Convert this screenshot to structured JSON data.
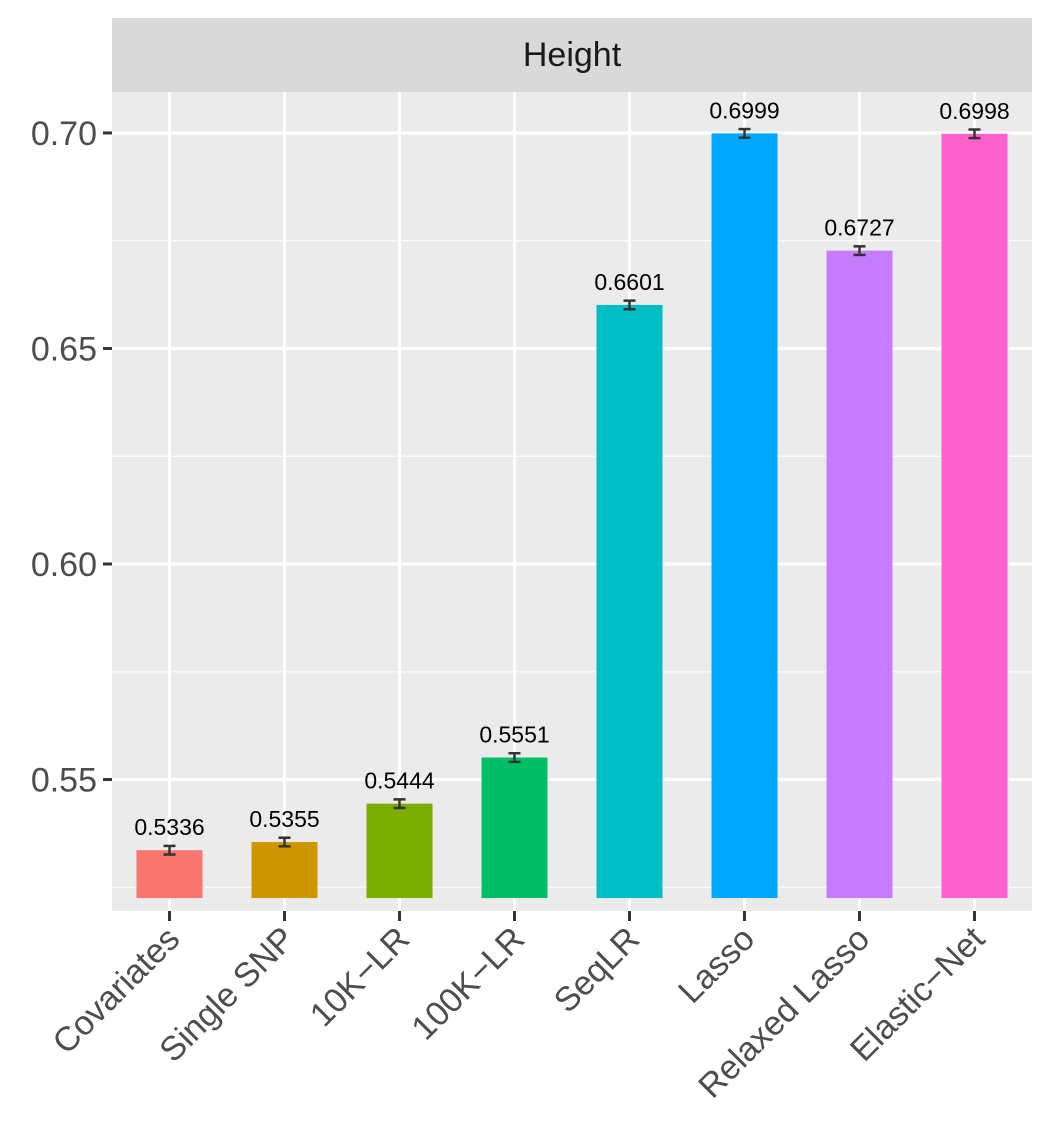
{
  "chart_data": {
    "type": "bar",
    "facet_label": "Height",
    "categories": [
      "Covariates",
      "Single SNP",
      "10K−LR",
      "100K−LR",
      "SeqLR",
      "Lasso",
      "Relaxed Lasso",
      "Elastic−Net"
    ],
    "values": [
      0.5336,
      0.5355,
      0.5444,
      0.5551,
      0.6601,
      0.6999,
      0.6727,
      0.6998
    ],
    "data_labels": [
      "0.5336",
      "0.5355",
      "0.5444",
      "0.5551",
      "0.6601",
      "0.6999",
      "0.6727",
      "0.6998"
    ],
    "error_bars": [
      [
        0.5326,
        0.5346
      ],
      [
        0.5345,
        0.5365
      ],
      [
        0.5434,
        0.5454
      ],
      [
        0.5541,
        0.5561
      ],
      [
        0.6591,
        0.6611
      ],
      [
        0.6989,
        0.7009
      ],
      [
        0.6717,
        0.6737
      ],
      [
        0.6988,
        0.7008
      ]
    ],
    "bar_colors": [
      "#F8766D",
      "#CD9600",
      "#7CAE00",
      "#00BE67",
      "#00BFC4",
      "#00A9FF",
      "#C77CFF",
      "#FF61CC"
    ],
    "bar_baseline": 0.5225,
    "ylim": [
      0.5195,
      0.7095
    ],
    "y_ticks": [
      0.55,
      0.6,
      0.65,
      0.7
    ],
    "y_tick_labels": [
      "0.55",
      "0.60",
      "0.65",
      "0.70"
    ],
    "y_minor_ticks": [
      0.525,
      0.575,
      0.625,
      0.675
    ],
    "xlabel": "",
    "ylabel": "",
    "grid": true,
    "legend": "none"
  },
  "colors": {
    "panel_background": "#EBEBEB",
    "strip_background": "#D9D9D9",
    "grid_major": "#FFFFFF",
    "axis_tick": "#333333",
    "error_bar": "#333333"
  }
}
